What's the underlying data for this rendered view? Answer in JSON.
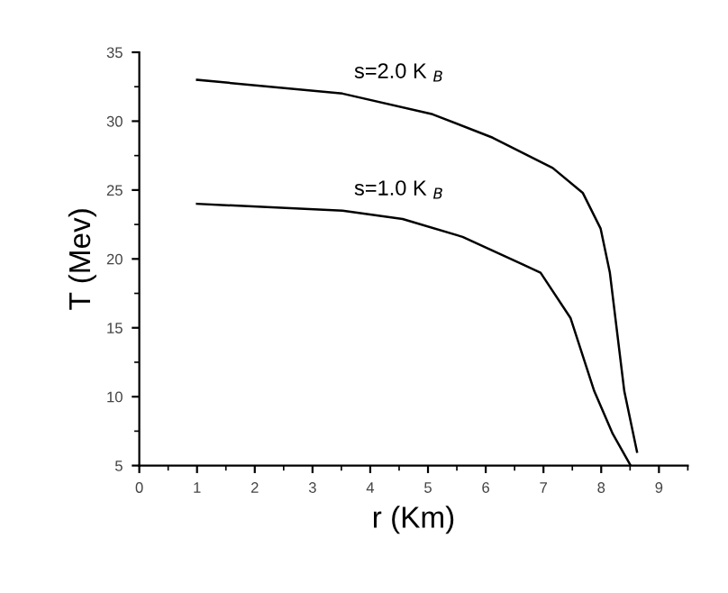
{
  "chart_data": {
    "type": "line",
    "xlabel": "r (Km)",
    "ylabel": "T (Mev)",
    "xlim": [
      0,
      9.5
    ],
    "xticks": [
      0,
      1,
      2,
      3,
      4,
      5,
      6,
      7,
      8,
      9
    ],
    "ylim": [
      5,
      35
    ],
    "yticks": [
      5,
      10,
      15,
      20,
      25,
      30,
      35
    ],
    "grid": false,
    "legend": false,
    "marker": "none",
    "line_style": "solid",
    "series": [
      {
        "name": "s=2.0 K $_{B}$",
        "color": "#000000",
        "x": [
          1.0,
          3.52,
          5.08,
          6.12,
          7.16,
          7.68,
          7.99,
          8.15,
          8.4,
          8.62
        ],
        "values": [
          33.0,
          32.0,
          30.5,
          28.8,
          26.6,
          24.8,
          22.2,
          19.0,
          10.4,
          6.0
        ]
      },
      {
        "name": "s=1.0 K $_{B}$",
        "color": "#000000",
        "x": [
          1.0,
          3.52,
          4.56,
          5.6,
          6.64,
          6.95,
          7.47,
          7.88,
          8.2,
          8.51
        ],
        "values": [
          24.0,
          23.5,
          22.9,
          21.6,
          19.6,
          19.0,
          15.7,
          10.4,
          7.3,
          5.0
        ]
      }
    ]
  }
}
